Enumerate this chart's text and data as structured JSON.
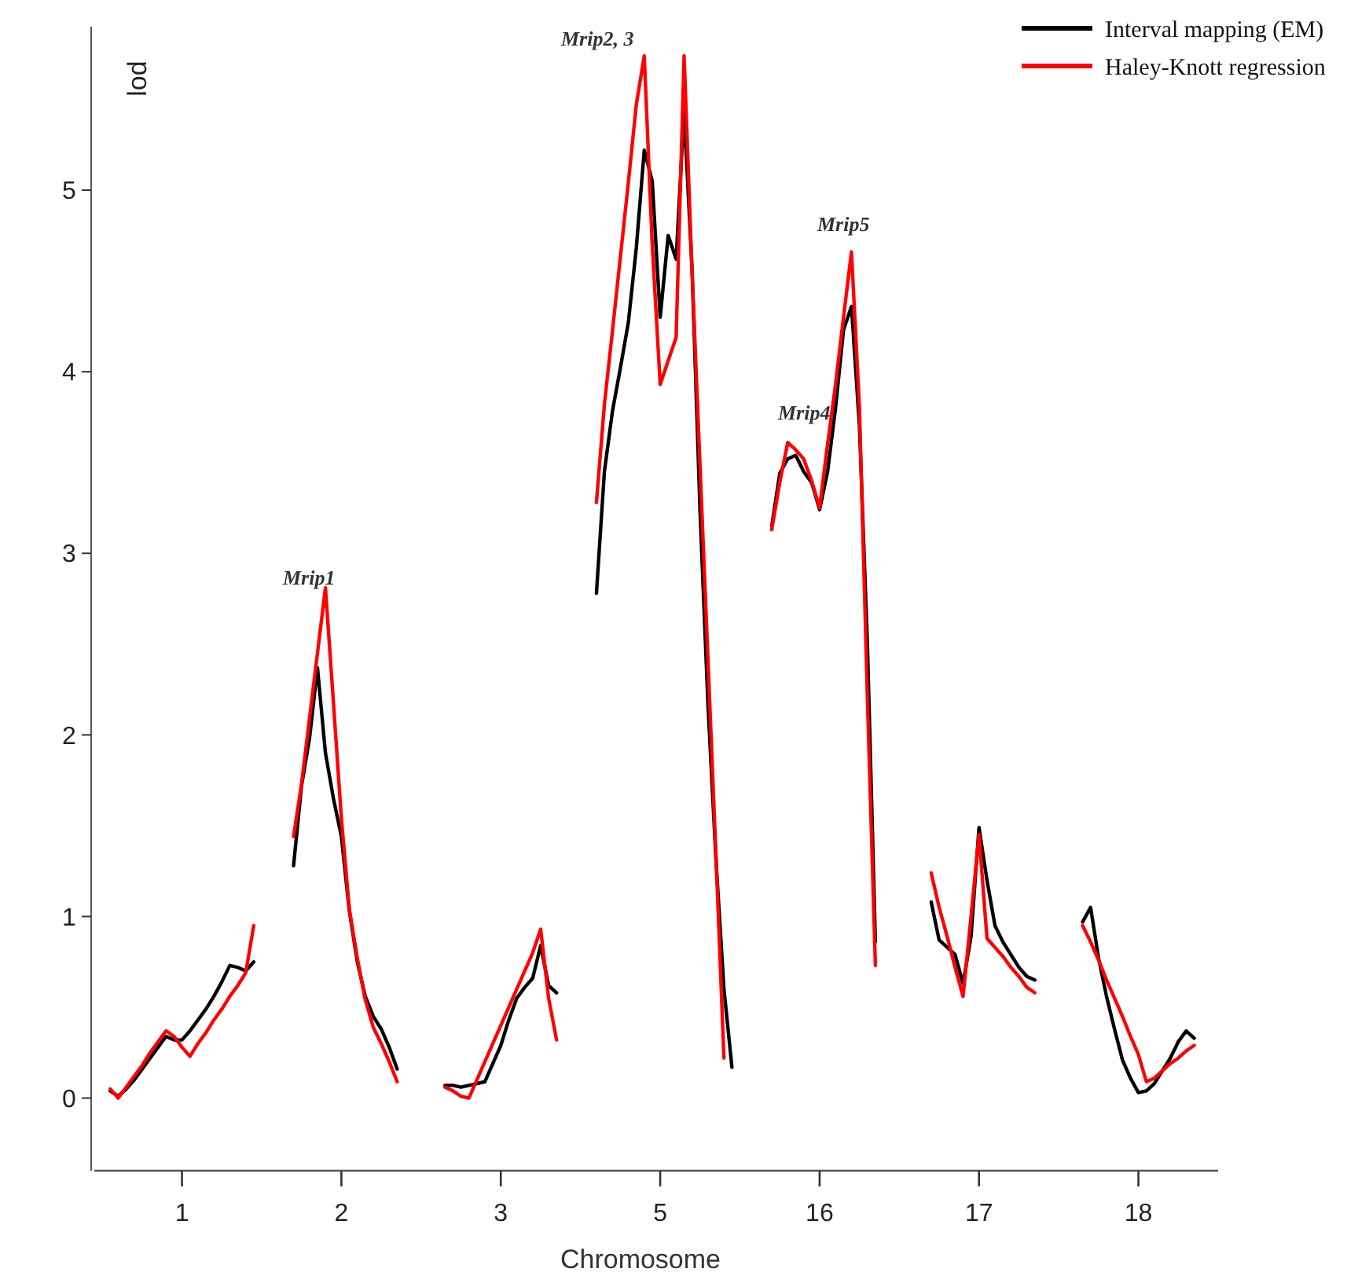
{
  "chart_data": {
    "type": "line",
    "xlabel": "Chromosome",
    "ylabel": "lod",
    "categories": [
      null,
      null,
      null,
      null,
      null,
      null,
      null,
      null,
      null,
      "1",
      null,
      null,
      null,
      null,
      null,
      null,
      null,
      null,
      null,
      null,
      null,
      null,
      null,
      null,
      null,
      null,
      null,
      null,
      null,
      "2",
      null,
      null,
      null,
      null,
      null,
      null,
      null,
      null,
      null,
      null,
      null,
      null,
      null,
      null,
      null,
      null,
      null,
      null,
      null,
      "3",
      null,
      null,
      null,
      null,
      null,
      null,
      null,
      null,
      null,
      null,
      null,
      null,
      null,
      null,
      null,
      null,
      null,
      null,
      null,
      "5",
      null,
      null,
      null,
      null,
      null,
      null,
      null,
      null,
      null,
      null,
      null,
      null,
      null,
      null,
      null,
      null,
      null,
      null,
      null,
      "16",
      null,
      null,
      null,
      null,
      null,
      null,
      null,
      null,
      null,
      null,
      null,
      null,
      null,
      null,
      null,
      null,
      null,
      null,
      null,
      "17",
      null,
      null,
      null,
      null,
      null,
      null,
      null,
      null,
      null,
      null,
      null,
      null,
      null,
      null,
      null,
      null,
      null,
      null,
      null,
      "18",
      null,
      null,
      null,
      null,
      null,
      null,
      null
    ],
    "ylim": [
      -0.4,
      5.9
    ],
    "yticks": [
      0,
      1,
      2,
      3,
      4,
      5
    ],
    "legend": "top right",
    "grid": false,
    "marker": "none",
    "line_style": "solid",
    "series": [
      {
        "name": "Interval mapping (EM)",
        "color": "#000000",
        "values": [
          0.04,
          0.01,
          0.05,
          0.1,
          0.16,
          0.22,
          0.28,
          0.34,
          0.32,
          0.32,
          0.37,
          0.43,
          0.49,
          0.56,
          0.64,
          0.73,
          0.72,
          0.7,
          0.75,
          null,
          null,
          null,
          null,
          1.28,
          1.72,
          1.98,
          2.37,
          1.9,
          1.65,
          1.44,
          1.03,
          0.75,
          0.56,
          0.45,
          0.38,
          0.28,
          0.16,
          null,
          null,
          null,
          null,
          null,
          0.07,
          0.07,
          0.06,
          0.07,
          0.08,
          0.09,
          0.19,
          0.29,
          0.43,
          0.55,
          0.61,
          0.66,
          0.84,
          0.62,
          0.58,
          null,
          null,
          null,
          null,
          2.78,
          3.45,
          3.78,
          4.02,
          4.27,
          4.68,
          5.22,
          5.05,
          4.3,
          4.75,
          4.62,
          5.44,
          4.56,
          3.23,
          2.16,
          1.31,
          0.6,
          0.17,
          null,
          null,
          null,
          null,
          3.15,
          3.44,
          3.52,
          3.54,
          3.45,
          3.39,
          3.24,
          3.45,
          3.8,
          4.23,
          4.36,
          3.7,
          2.5,
          0.86,
          null,
          null,
          null,
          null,
          null,
          null,
          1.08,
          0.87,
          0.83,
          0.79,
          0.63,
          0.89,
          1.49,
          1.2,
          0.95,
          0.86,
          0.79,
          0.72,
          0.67,
          0.65,
          null,
          null,
          null,
          null,
          null,
          0.97,
          1.05,
          0.77,
          0.56,
          0.38,
          0.21,
          0.11,
          0.03,
          0.04,
          0.08,
          0.15,
          0.22,
          0.31,
          0.37,
          0.33
        ]
      },
      {
        "name": "Haley-Knott regression",
        "color": "#ff0000",
        "values": [
          0.05,
          0,
          0.06,
          0.12,
          0.18,
          0.25,
          0.31,
          0.37,
          0.34,
          0.28,
          0.23,
          0.3,
          0.36,
          0.43,
          0.49,
          0.56,
          0.62,
          0.69,
          0.95,
          null,
          null,
          null,
          null,
          1.44,
          1.73,
          2.09,
          2.45,
          2.81,
          2.18,
          1.54,
          1.04,
          0.77,
          0.54,
          0.39,
          0.3,
          0.2,
          0.09,
          null,
          null,
          null,
          null,
          null,
          0.06,
          0.04,
          0.01,
          0,
          0.1,
          0.2,
          0.3,
          0.4,
          0.5,
          0.6,
          0.7,
          0.8,
          0.93,
          0.55,
          0.32,
          null,
          null,
          null,
          null,
          3.28,
          3.82,
          4.22,
          4.63,
          5.04,
          5.47,
          5.74,
          4.7,
          3.93,
          4.06,
          4.19,
          5.74,
          4.55,
          3.48,
          2.41,
          1.33,
          0.22,
          null,
          null,
          null,
          null,
          null,
          3.13,
          3.39,
          3.61,
          3.57,
          3.52,
          3.4,
          3.25,
          3.6,
          3.93,
          4.3,
          4.66,
          3.8,
          2.2,
          0.73,
          null,
          null,
          null,
          null,
          null,
          null,
          1.24,
          1.05,
          0.89,
          0.72,
          0.56,
          1,
          1.45,
          0.88,
          0.83,
          0.78,
          0.72,
          0.67,
          0.61,
          0.58,
          null,
          null,
          null,
          null,
          null,
          0.95,
          0.86,
          0.76,
          0.65,
          0.55,
          0.45,
          0.34,
          0.24,
          0.09,
          0.11,
          0.15,
          0.19,
          0.22,
          0.26,
          0.29
        ]
      }
    ],
    "annotations": [
      "Mrip1",
      "Mrip2, 3",
      "Mrip4",
      "Mrip5"
    ]
  }
}
